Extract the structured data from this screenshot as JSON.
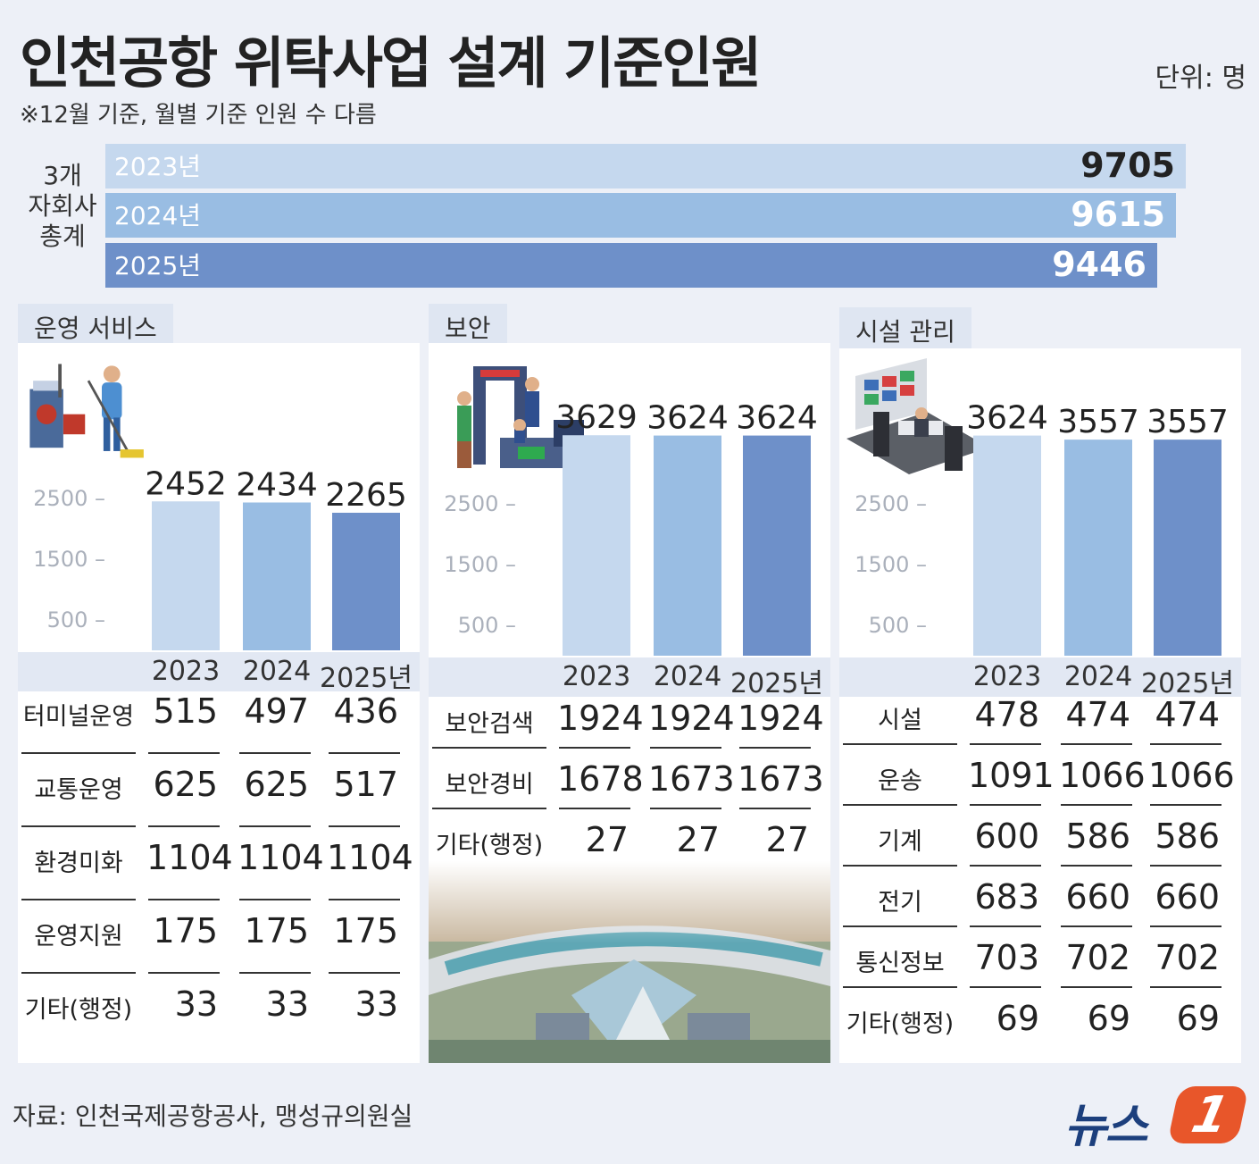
{
  "header": {
    "title": "인천공항 위탁사업 설계 기준인원",
    "note": "※12월 기준, 월별 기준 인원 수 다름",
    "unit": "단위: 명"
  },
  "totals": {
    "label_line1": "3개",
    "label_line2": "자회사",
    "label_line3": "총계",
    "items": [
      {
        "year": "2023년",
        "value": "9705"
      },
      {
        "year": "2024년",
        "value": "9615"
      },
      {
        "year": "2025년",
        "value": "9446"
      }
    ]
  },
  "colors": {
    "y2023": "#c5d8ee",
    "y2024": "#99bde3",
    "y2025": "#6e90c9"
  },
  "panels": [
    {
      "tab": "운영 서비스",
      "icon": "cleaning-worker-icon",
      "years": [
        "2023",
        "2024",
        "2025년"
      ],
      "rows": [
        {
          "label": "터미널운영",
          "values": [
            "515",
            "497",
            "436"
          ]
        },
        {
          "label": "교통운영",
          "values": [
            "625",
            "625",
            "517"
          ]
        },
        {
          "label": "환경미화",
          "values": [
            "1104",
            "1104",
            "1104"
          ]
        },
        {
          "label": "운영지원",
          "values": [
            "175",
            "175",
            "175"
          ]
        },
        {
          "label": "기타(행정)",
          "values": [
            "33",
            "33",
            "33"
          ]
        }
      ]
    },
    {
      "tab": "보안",
      "icon": "security-checkpoint-icon",
      "years": [
        "2023",
        "2024",
        "2025년"
      ],
      "rows": [
        {
          "label": "보안검색",
          "values": [
            "1924",
            "1924",
            "1924"
          ]
        },
        {
          "label": "보안경비",
          "values": [
            "1678",
            "1673",
            "1673"
          ]
        },
        {
          "label": "기타(행정)",
          "values": [
            "27",
            "27",
            "27"
          ]
        }
      ],
      "image": "airport-aerial-photo"
    },
    {
      "tab": "시설 관리",
      "icon": "control-room-icon",
      "years": [
        "2023",
        "2024",
        "2025년"
      ],
      "rows": [
        {
          "label": "시설",
          "values": [
            "478",
            "474",
            "474"
          ]
        },
        {
          "label": "운송",
          "values": [
            "1091",
            "1066",
            "1066"
          ]
        },
        {
          "label": "기계",
          "values": [
            "600",
            "586",
            "586"
          ]
        },
        {
          "label": "전기",
          "values": [
            "683",
            "660",
            "660"
          ]
        },
        {
          "label": "통신정보",
          "values": [
            "703",
            "702",
            "702"
          ]
        },
        {
          "label": "기타(행정)",
          "values": [
            "69",
            "69",
            "69"
          ]
        }
      ]
    }
  ],
  "chart_data": [
    {
      "type": "bar",
      "title": "3개 자회사 총계",
      "categories": [
        "2023년",
        "2024년",
        "2025년"
      ],
      "values": [
        9705,
        9615,
        9446
      ]
    },
    {
      "type": "bar",
      "title": "운영 서비스",
      "categories": [
        "2023",
        "2024",
        "2025년"
      ],
      "values": [
        2452,
        2434,
        2265
      ],
      "yticks": [
        500,
        1500,
        2500
      ],
      "ylim": [
        0,
        3800
      ]
    },
    {
      "type": "bar",
      "title": "보안",
      "categories": [
        "2023",
        "2024",
        "2025년"
      ],
      "values": [
        3629,
        3624,
        3624
      ],
      "yticks": [
        500,
        1500,
        2500
      ],
      "ylim": [
        0,
        3800
      ]
    },
    {
      "type": "bar",
      "title": "시설 관리",
      "categories": [
        "2023",
        "2024",
        "2025년"
      ],
      "values": [
        3624,
        3557,
        3557
      ],
      "yticks": [
        500,
        1500,
        2500
      ],
      "ylim": [
        0,
        3800
      ]
    }
  ],
  "footer": {
    "source": "자료: 인천국제공항공사, 맹성규의원실",
    "logo_text": "뉴스",
    "logo_mark": "1"
  }
}
